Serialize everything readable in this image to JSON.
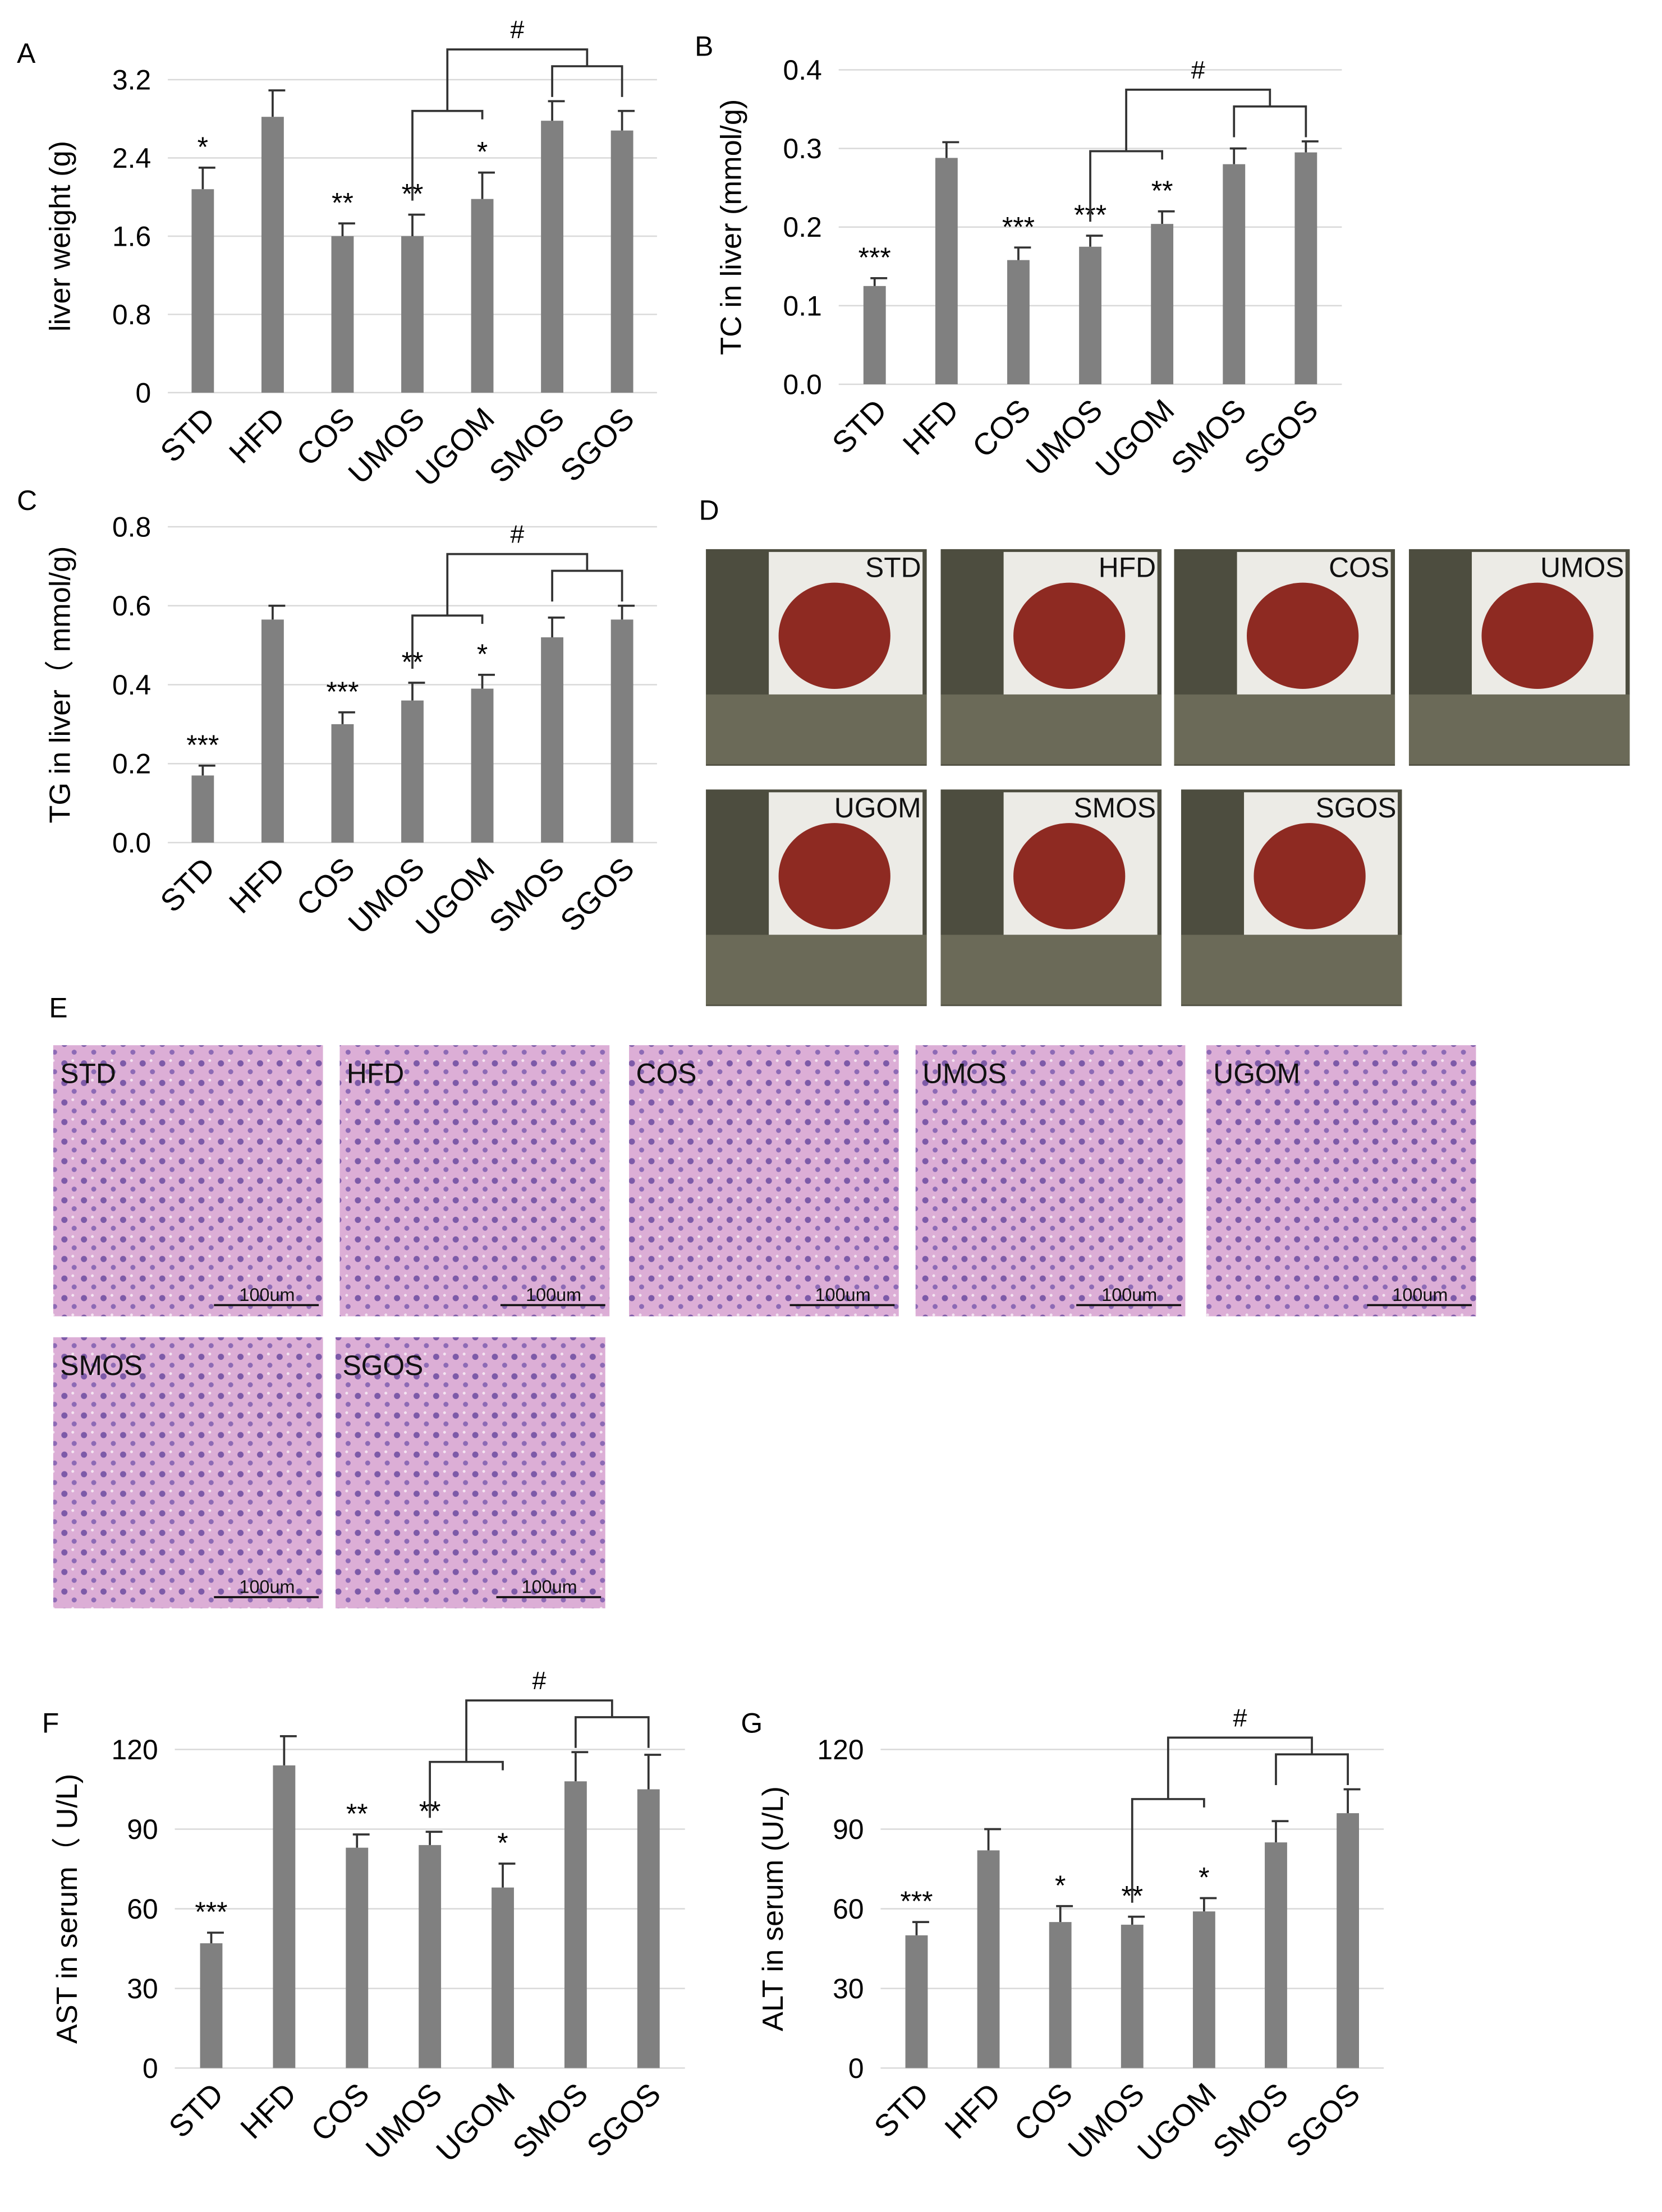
{
  "chart_data": [
    {
      "type": "bar",
      "panel_label": "A",
      "ylabel": "liver weight (g)",
      "categories": [
        "STD",
        "HFD",
        "COS",
        "UMOS",
        "UGOM",
        "SMOS",
        "SGOS"
      ],
      "values": [
        2.08,
        2.82,
        1.6,
        1.6,
        1.98,
        2.78,
        2.68
      ],
      "errors": [
        0.22,
        0.27,
        0.13,
        0.22,
        0.27,
        0.2,
        0.2
      ],
      "significance": [
        "*",
        null,
        "**",
        "**",
        "*",
        null,
        null
      ],
      "bracket_label": "#",
      "color": "#808080",
      "ylim": [
        0,
        3.2
      ],
      "yticks": [
        0,
        0.8,
        1.6,
        2.4,
        3.2
      ],
      "grid": true
    },
    {
      "type": "bar",
      "panel_label": "B",
      "ylabel": "TC in liver (mmol/g)",
      "categories": [
        "STD",
        "HFD",
        "COS",
        "UMOS",
        "UGOM",
        "SMOS",
        "SGOS"
      ],
      "values": [
        0.125,
        0.288,
        0.158,
        0.175,
        0.204,
        0.28,
        0.295
      ],
      "errors": [
        0.01,
        0.02,
        0.016,
        0.014,
        0.016,
        0.02,
        0.014
      ],
      "significance": [
        "***",
        null,
        "***",
        "***",
        "**",
        null,
        null
      ],
      "bracket_label": "#",
      "color": "#808080",
      "ylim": [
        0,
        0.4
      ],
      "yticks": [
        {
          "value": 0,
          "label": "0.0"
        },
        0.1,
        0.2,
        0.3,
        0.4
      ],
      "grid": true
    },
    {
      "type": "bar",
      "panel_label": "C",
      "ylabel": "TG in liver（ mmol/g)",
      "categories": [
        "STD",
        "HFD",
        "COS",
        "UMOS",
        "UGOM",
        "SMOS",
        "SGOS"
      ],
      "values": [
        0.17,
        0.565,
        0.3,
        0.36,
        0.39,
        0.52,
        0.565
      ],
      "errors": [
        0.025,
        0.035,
        0.03,
        0.045,
        0.035,
        0.05,
        0.035
      ],
      "significance": [
        "***",
        null,
        "***",
        "**",
        "*",
        null,
        null
      ],
      "bracket_label": "#",
      "color": "#808080",
      "ylim": [
        0,
        0.8
      ],
      "yticks": [
        {
          "value": 0,
          "label": "0.0"
        },
        0.2,
        0.4,
        0.6,
        0.8
      ],
      "grid": true
    },
    {
      "type": "bar",
      "panel_label": "F",
      "ylabel": "AST in serum（ U/L)",
      "categories": [
        "STD",
        "HFD",
        "COS",
        "UMOS",
        "UGOM",
        "SMOS",
        "SGOS"
      ],
      "values": [
        47,
        114,
        83,
        84,
        68,
        108,
        105
      ],
      "errors": [
        4,
        11,
        5,
        5,
        9,
        11,
        13
      ],
      "significance": [
        "***",
        null,
        "**",
        "**",
        "*",
        null,
        null
      ],
      "bracket_label": "#",
      "color": "#808080",
      "ylim": [
        0,
        120
      ],
      "yticks": [
        0,
        30,
        60,
        90,
        120
      ],
      "grid": true
    },
    {
      "type": "bar",
      "panel_label": "G",
      "ylabel": "ALT in serum (U/L)",
      "categories": [
        "STD",
        "HFD",
        "COS",
        "UMOS",
        "UGOM",
        "SMOS",
        "SGOS"
      ],
      "values": [
        50,
        82,
        55,
        54,
        59,
        85,
        96
      ],
      "errors": [
        5,
        8,
        6,
        3,
        5,
        8,
        9
      ],
      "significance": [
        "***",
        null,
        "*",
        "**",
        "*",
        null,
        null
      ],
      "bracket_label": "#",
      "color": "#808080",
      "ylim": [
        0,
        120
      ],
      "yticks": [
        0,
        30,
        60,
        90,
        120
      ],
      "grid": true
    }
  ],
  "photo_panels": [
    {
      "panel_label": "D",
      "images": [
        "STD",
        "HFD",
        "COS",
        "UMOS",
        "UGOM",
        "SMOS",
        "SGOS"
      ]
    },
    {
      "panel_label": "E",
      "images": [
        "STD",
        "HFD",
        "COS",
        "UMOS",
        "UGOM",
        "SMOS",
        "SGOS"
      ],
      "scale_bar": "100um"
    }
  ]
}
